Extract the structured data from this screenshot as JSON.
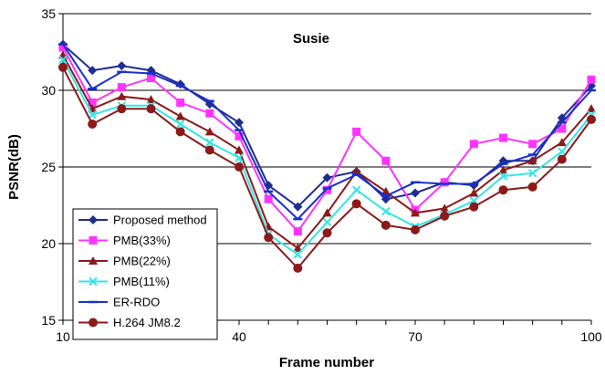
{
  "chart_data": {
    "type": "line",
    "title": "Susie",
    "xlabel": "Frame number",
    "ylabel": "PSNR(dB)",
    "xlim": [
      10,
      100
    ],
    "ylim": [
      15,
      35
    ],
    "x_ticks": [
      "10",
      "40",
      "70",
      "100"
    ],
    "y_ticks": [
      "15",
      "20",
      "25",
      "30",
      "35"
    ],
    "grid": "horizontal",
    "legend_position": "bottom-left",
    "x": [
      10,
      15,
      20,
      25,
      30,
      35,
      40,
      45,
      50,
      55,
      60,
      65,
      70,
      75,
      80,
      85,
      90,
      95,
      100
    ],
    "series": [
      {
        "name": "Proposed method",
        "color": "#1f2d8f",
        "marker": "diamond",
        "values": [
          33.0,
          31.3,
          31.6,
          31.3,
          30.4,
          29.1,
          27.9,
          23.8,
          22.4,
          24.3,
          24.7,
          22.9,
          23.3,
          24.0,
          23.8,
          25.4,
          25.4,
          28.2,
          30.3
        ]
      },
      {
        "name": "PMB(33%)",
        "color": "#ff33ff",
        "marker": "square",
        "values": [
          32.8,
          29.2,
          30.2,
          30.8,
          29.2,
          28.5,
          27.0,
          22.9,
          20.8,
          23.5,
          27.3,
          25.4,
          22.2,
          24.0,
          26.5,
          26.9,
          26.5,
          27.5,
          30.7
        ]
      },
      {
        "name": "PMB(22%)",
        "color": "#8b1a1a",
        "marker": "triangle",
        "values": [
          32.3,
          28.8,
          29.6,
          29.4,
          28.3,
          27.3,
          26.1,
          21.1,
          19.7,
          22.0,
          24.7,
          23.4,
          22.0,
          22.3,
          23.3,
          24.8,
          25.4,
          26.6,
          28.8
        ]
      },
      {
        "name": "PMB(11%)",
        "color": "#33e6e6",
        "marker": "cross",
        "values": [
          32.0,
          28.4,
          29.0,
          29.0,
          27.8,
          26.6,
          25.6,
          20.6,
          19.3,
          21.4,
          23.5,
          22.1,
          21.1,
          21.9,
          22.8,
          24.4,
          24.6,
          26.0,
          28.4
        ]
      },
      {
        "name": "ER-RDO",
        "color": "#1a2fcc",
        "marker": "dash",
        "values": [
          33.0,
          30.1,
          31.2,
          31.1,
          30.3,
          29.3,
          27.4,
          23.4,
          21.6,
          23.6,
          24.5,
          23.1,
          24.0,
          23.9,
          23.9,
          25.2,
          25.8,
          27.9,
          30.0
        ]
      },
      {
        "name": "H.264 JM8.2",
        "color": "#8b1a1a",
        "marker": "circle",
        "values": [
          31.5,
          27.8,
          28.8,
          28.8,
          27.3,
          26.1,
          25.0,
          20.4,
          18.4,
          20.7,
          22.6,
          21.2,
          20.9,
          21.8,
          22.4,
          23.5,
          23.7,
          25.5,
          28.1
        ]
      }
    ]
  }
}
